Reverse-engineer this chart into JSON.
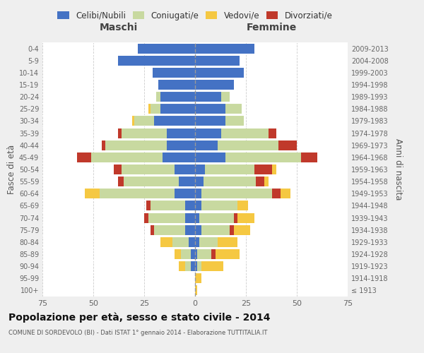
{
  "age_groups": [
    "100+",
    "95-99",
    "90-94",
    "85-89",
    "80-84",
    "75-79",
    "70-74",
    "65-69",
    "60-64",
    "55-59",
    "50-54",
    "45-49",
    "40-44",
    "35-39",
    "30-34",
    "25-29",
    "20-24",
    "15-19",
    "10-14",
    "5-9",
    "0-4"
  ],
  "birth_years": [
    "≤ 1913",
    "1914-1918",
    "1919-1923",
    "1924-1928",
    "1929-1933",
    "1934-1938",
    "1939-1943",
    "1944-1948",
    "1949-1953",
    "1954-1958",
    "1959-1963",
    "1964-1968",
    "1969-1973",
    "1974-1978",
    "1979-1983",
    "1984-1988",
    "1989-1993",
    "1994-1998",
    "1999-2003",
    "2004-2008",
    "2009-2013"
  ],
  "colors": {
    "celibe": "#4472C4",
    "coniugato": "#c8d9a0",
    "vedovo": "#f5c842",
    "divorziato": "#c0392b"
  },
  "maschi": {
    "celibe": [
      0,
      0,
      2,
      2,
      3,
      5,
      5,
      5,
      10,
      8,
      10,
      16,
      14,
      14,
      20,
      17,
      17,
      18,
      21,
      38,
      28
    ],
    "coniugato": [
      0,
      0,
      3,
      5,
      8,
      15,
      18,
      17,
      37,
      27,
      26,
      35,
      30,
      22,
      10,
      5,
      2,
      0,
      0,
      0,
      0
    ],
    "vedovo": [
      0,
      0,
      3,
      3,
      6,
      0,
      0,
      0,
      7,
      0,
      0,
      0,
      0,
      0,
      1,
      1,
      0,
      0,
      0,
      0,
      0
    ],
    "divorziato": [
      0,
      0,
      0,
      0,
      0,
      2,
      2,
      2,
      0,
      3,
      4,
      7,
      2,
      2,
      0,
      0,
      0,
      0,
      0,
      0,
      0
    ]
  },
  "femmine": {
    "nubile": [
      0,
      0,
      1,
      1,
      2,
      3,
      2,
      3,
      3,
      4,
      5,
      15,
      11,
      13,
      15,
      15,
      13,
      19,
      24,
      22,
      29
    ],
    "coniugata": [
      0,
      0,
      2,
      7,
      9,
      14,
      17,
      18,
      35,
      26,
      24,
      37,
      30,
      23,
      9,
      8,
      4,
      0,
      0,
      0,
      0
    ],
    "vedova": [
      1,
      3,
      11,
      12,
      10,
      8,
      8,
      5,
      5,
      2,
      2,
      0,
      0,
      0,
      0,
      0,
      0,
      0,
      0,
      0,
      0
    ],
    "divorziata": [
      0,
      0,
      0,
      2,
      0,
      2,
      2,
      0,
      4,
      4,
      9,
      8,
      9,
      4,
      0,
      0,
      0,
      0,
      0,
      0,
      0
    ]
  },
  "xlim": 75,
  "title": "Popolazione per età, sesso e stato civile - 2014",
  "subtitle": "COMUNE DI SORDEVOLO (BI) - Dati ISTAT 1° gennaio 2014 - Elaborazione TUTTITALIA.IT",
  "ylabel_left": "Fasce di età",
  "ylabel_right": "Anni di nascita",
  "xlabel_left": "Maschi",
  "xlabel_right": "Femmine",
  "bg_color": "#efefef",
  "plot_bg": "#ffffff"
}
